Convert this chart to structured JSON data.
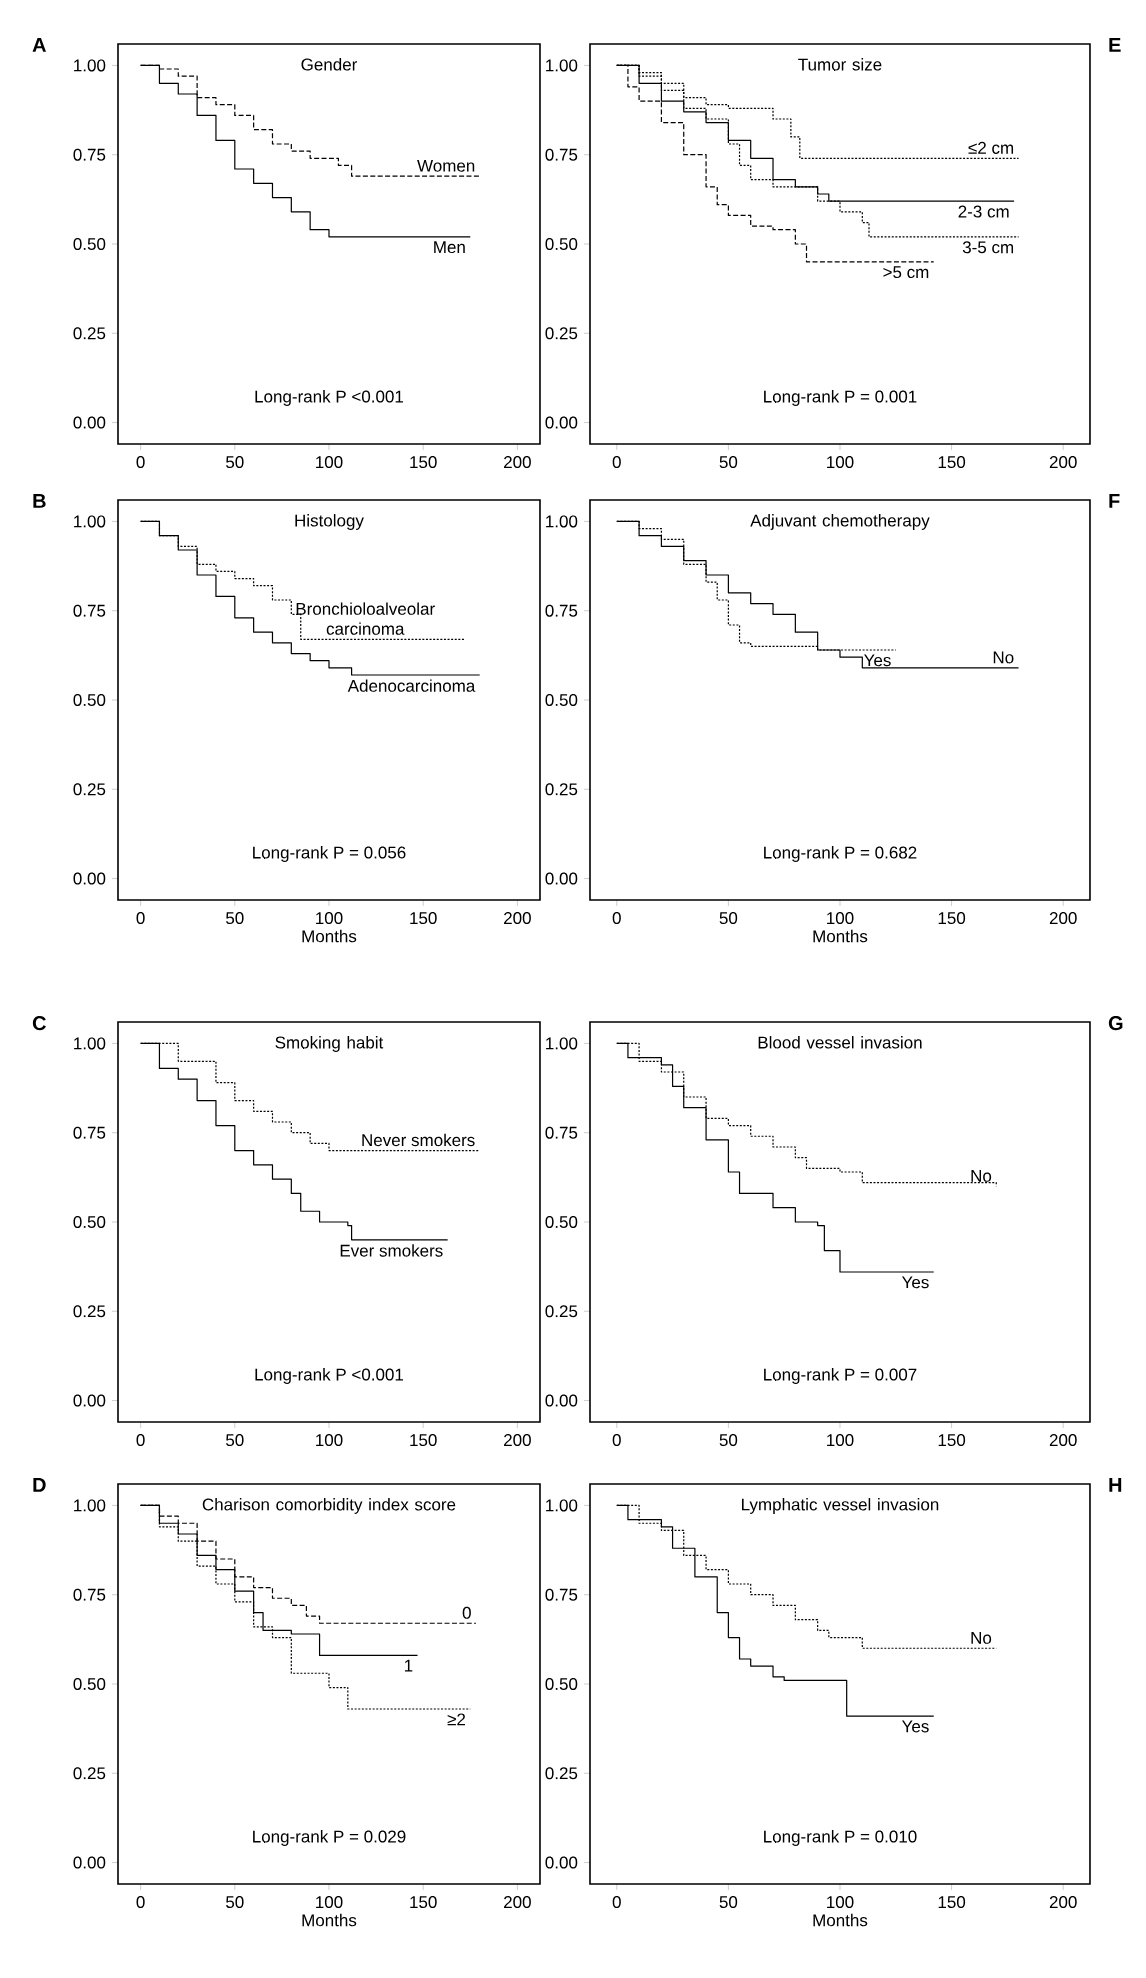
{
  "chart_data": [
    {
      "type": "step",
      "title": "Gender",
      "annotations": [
        "A",
        "Long-rank P <0.001"
      ],
      "xlim": [
        -12,
        212
      ],
      "ylim": [
        -0.06,
        1.06
      ],
      "xticks": [
        0,
        50,
        100,
        150,
        200
      ],
      "yticks": [
        {
          "value": 0,
          "label": "0.00"
        },
        {
          "value": 0.25,
          "label": "0.25"
        },
        {
          "value": 0.5,
          "label": "0.50"
        },
        {
          "value": 0.75,
          "label": "0.75"
        },
        {
          "value": 1,
          "label": "1.00"
        }
      ],
      "series": [
        {
          "name": "Women",
          "color": "#000000",
          "line_style": "dashed",
          "x": [
            0,
            10,
            20,
            30,
            40,
            50,
            60,
            70,
            80,
            90,
            100,
            105,
            112,
            180
          ],
          "values": [
            1,
            0.99,
            0.97,
            0.91,
            0.89,
            0.86,
            0.82,
            0.78,
            0.76,
            0.74,
            0.74,
            0.72,
            0.69,
            0.69
          ]
        },
        {
          "name": "Men",
          "color": "#000000",
          "line_style": "solid",
          "x": [
            0,
            10,
            20,
            30,
            40,
            50,
            60,
            70,
            80,
            90,
            100,
            175
          ],
          "values": [
            1,
            0.95,
            0.92,
            0.86,
            0.79,
            0.71,
            0.67,
            0.63,
            0.59,
            0.54,
            0.52,
            0.52
          ]
        }
      ]
    },
    {
      "type": "step",
      "title": "Tumor size",
      "annotations": [
        "E",
        "Long-rank P = 0.001"
      ],
      "xlim": [
        -12,
        212
      ],
      "ylim": [
        -0.06,
        1.06
      ],
      "xticks": [
        0,
        50,
        100,
        150,
        200
      ],
      "yticks": [
        {
          "value": 0,
          "label": "0.00"
        },
        {
          "value": 0.25,
          "label": "0.25"
        },
        {
          "value": 0.5,
          "label": "0.50"
        },
        {
          "value": 0.75,
          "label": "0.75"
        },
        {
          "value": 1,
          "label": "1.00"
        }
      ],
      "series": [
        {
          "name": "≤2 cm",
          "color": "#000000",
          "line_style": "dotted",
          "x": [
            0,
            10,
            20,
            30,
            40,
            50,
            60,
            70,
            78,
            82,
            180
          ],
          "values": [
            1,
            0.98,
            0.95,
            0.91,
            0.89,
            0.88,
            0.88,
            0.85,
            0.8,
            0.74,
            0.74
          ]
        },
        {
          "name": "2-3 cm",
          "color": "#000000",
          "line_style": "solid",
          "x": [
            0,
            10,
            20,
            30,
            40,
            50,
            60,
            70,
            80,
            90,
            95,
            178
          ],
          "values": [
            1,
            0.95,
            0.9,
            0.87,
            0.84,
            0.79,
            0.74,
            0.68,
            0.66,
            0.64,
            0.62,
            0.62
          ]
        },
        {
          "name": "3-5 cm",
          "color": "#000000",
          "line_style": "dotted",
          "x": [
            0,
            10,
            20,
            30,
            40,
            50,
            55,
            60,
            70,
            90,
            100,
            110,
            113,
            180
          ],
          "values": [
            1,
            0.97,
            0.93,
            0.88,
            0.85,
            0.78,
            0.72,
            0.68,
            0.66,
            0.62,
            0.59,
            0.56,
            0.52,
            0.52
          ]
        },
        {
          "name": ">5 cm",
          "color": "#000000",
          "line_style": "dashed",
          "x": [
            0,
            5,
            10,
            20,
            30,
            40,
            45,
            50,
            60,
            70,
            80,
            85,
            142
          ],
          "values": [
            1,
            0.94,
            0.9,
            0.84,
            0.75,
            0.66,
            0.61,
            0.58,
            0.55,
            0.54,
            0.5,
            0.45,
            0.45
          ]
        }
      ]
    },
    {
      "type": "step",
      "title": "Histology",
      "xlabel": "Months",
      "annotations": [
        "B",
        "Long-rank P = 0.056"
      ],
      "xlim": [
        -12,
        212
      ],
      "ylim": [
        -0.06,
        1.06
      ],
      "xticks": [
        0,
        50,
        100,
        150,
        200
      ],
      "yticks": [
        {
          "value": 0,
          "label": "0.00"
        },
        {
          "value": 0.25,
          "label": "0.25"
        },
        {
          "value": 0.5,
          "label": "0.50"
        },
        {
          "value": 0.75,
          "label": "0.75"
        },
        {
          "value": 1,
          "label": "1.00"
        }
      ],
      "series": [
        {
          "name": "Bronchioloalveolar carcinoma",
          "color": "#000000",
          "line_style": "dotted",
          "x": [
            0,
            10,
            20,
            30,
            40,
            50,
            60,
            70,
            80,
            85,
            172
          ],
          "values": [
            1,
            0.96,
            0.93,
            0.88,
            0.86,
            0.84,
            0.82,
            0.78,
            0.74,
            0.67,
            0.67
          ]
        },
        {
          "name": "Adenocarcinoma",
          "color": "#000000",
          "line_style": "solid",
          "x": [
            0,
            10,
            20,
            30,
            40,
            50,
            60,
            70,
            80,
            90,
            100,
            112,
            180
          ],
          "values": [
            1,
            0.96,
            0.92,
            0.85,
            0.79,
            0.73,
            0.69,
            0.66,
            0.63,
            0.61,
            0.59,
            0.57,
            0.57
          ]
        }
      ]
    },
    {
      "type": "step",
      "title": "Adjuvant chemotherapy",
      "xlabel": "Months",
      "annotations": [
        "F",
        "Long-rank P = 0.682"
      ],
      "xlim": [
        -12,
        212
      ],
      "ylim": [
        -0.06,
        1.06
      ],
      "xticks": [
        0,
        50,
        100,
        150,
        200
      ],
      "yticks": [
        {
          "value": 0,
          "label": "0.00"
        },
        {
          "value": 0.25,
          "label": "0.25"
        },
        {
          "value": 0.5,
          "label": "0.50"
        },
        {
          "value": 0.75,
          "label": "0.75"
        },
        {
          "value": 1,
          "label": "1.00"
        }
      ],
      "series": [
        {
          "name": "No",
          "color": "#000000",
          "line_style": "solid",
          "x": [
            0,
            10,
            20,
            30,
            40,
            50,
            60,
            70,
            80,
            90,
            100,
            110,
            180
          ],
          "values": [
            1,
            0.96,
            0.93,
            0.89,
            0.85,
            0.8,
            0.77,
            0.74,
            0.69,
            0.64,
            0.62,
            0.59,
            0.59
          ]
        },
        {
          "name": "Yes",
          "color": "#000000",
          "line_style": "dotted",
          "x": [
            0,
            10,
            20,
            30,
            40,
            45,
            50,
            55,
            60,
            90,
            125
          ],
          "values": [
            1,
            0.98,
            0.95,
            0.88,
            0.83,
            0.78,
            0.71,
            0.66,
            0.65,
            0.64,
            0.64
          ]
        }
      ]
    },
    {
      "type": "step",
      "title": "Smoking habit",
      "annotations": [
        "C",
        "Long-rank P <0.001"
      ],
      "xlim": [
        -12,
        212
      ],
      "ylim": [
        -0.06,
        1.06
      ],
      "xticks": [
        0,
        50,
        100,
        150,
        200
      ],
      "yticks": [
        {
          "value": 0,
          "label": "0.00"
        },
        {
          "value": 0.25,
          "label": "0.25"
        },
        {
          "value": 0.5,
          "label": "0.50"
        },
        {
          "value": 0.75,
          "label": "0.75"
        },
        {
          "value": 1,
          "label": "1.00"
        }
      ],
      "series": [
        {
          "name": "Never smokers",
          "color": "#000000",
          "line_style": "dotted",
          "x": [
            0,
            20,
            40,
            50,
            60,
            70,
            80,
            90,
            100,
            180
          ],
          "values": [
            1,
            0.95,
            0.89,
            0.84,
            0.81,
            0.78,
            0.75,
            0.72,
            0.7,
            0.7
          ]
        },
        {
          "name": "Ever smokers",
          "color": "#000000",
          "line_style": "solid",
          "x": [
            0,
            10,
            20,
            30,
            40,
            50,
            60,
            70,
            80,
            85,
            95,
            110,
            112,
            163
          ],
          "values": [
            1,
            0.93,
            0.9,
            0.84,
            0.77,
            0.7,
            0.66,
            0.62,
            0.58,
            0.53,
            0.5,
            0.49,
            0.45,
            0.45
          ]
        }
      ]
    },
    {
      "type": "step",
      "title": "Blood vessel invasion",
      "annotations": [
        "G",
        "Long-rank P = 0.007"
      ],
      "xlim": [
        -12,
        212
      ],
      "ylim": [
        -0.06,
        1.06
      ],
      "xticks": [
        0,
        50,
        100,
        150,
        200
      ],
      "yticks": [
        {
          "value": 0,
          "label": "0.00"
        },
        {
          "value": 0.25,
          "label": "0.25"
        },
        {
          "value": 0.5,
          "label": "0.50"
        },
        {
          "value": 0.75,
          "label": "0.75"
        },
        {
          "value": 1,
          "label": "1.00"
        }
      ],
      "series": [
        {
          "name": "No",
          "color": "#000000",
          "line_style": "dotted",
          "x": [
            0,
            10,
            20,
            30,
            40,
            50,
            60,
            70,
            80,
            85,
            100,
            110,
            170
          ],
          "values": [
            1,
            0.95,
            0.92,
            0.85,
            0.79,
            0.77,
            0.74,
            0.71,
            0.68,
            0.65,
            0.64,
            0.61,
            0.6
          ]
        },
        {
          "name": "Yes",
          "color": "#000000",
          "line_style": "solid",
          "x": [
            0,
            5,
            20,
            25,
            30,
            40,
            50,
            55,
            70,
            80,
            90,
            93,
            100,
            142
          ],
          "values": [
            1,
            0.96,
            0.94,
            0.88,
            0.82,
            0.73,
            0.64,
            0.58,
            0.54,
            0.5,
            0.49,
            0.42,
            0.36,
            0.36
          ]
        }
      ]
    },
    {
      "type": "step",
      "title": "Charison comorbidity index score",
      "xlabel": "Months",
      "annotations": [
        "D",
        "Long-rank P = 0.029"
      ],
      "xlim": [
        -12,
        212
      ],
      "ylim": [
        -0.06,
        1.06
      ],
      "xticks": [
        0,
        50,
        100,
        150,
        200
      ],
      "yticks": [
        {
          "value": 0,
          "label": "0.00"
        },
        {
          "value": 0.25,
          "label": "0.25"
        },
        {
          "value": 0.5,
          "label": "0.50"
        },
        {
          "value": 0.75,
          "label": "0.75"
        },
        {
          "value": 1,
          "label": "1.00"
        }
      ],
      "series": [
        {
          "name": "0",
          "color": "#000000",
          "line_style": "dashed",
          "x": [
            0,
            10,
            20,
            30,
            40,
            50,
            60,
            70,
            80,
            88,
            95,
            178
          ],
          "values": [
            1,
            0.97,
            0.95,
            0.9,
            0.85,
            0.8,
            0.77,
            0.74,
            0.72,
            0.69,
            0.67,
            0.67
          ]
        },
        {
          "name": "1",
          "color": "#000000",
          "line_style": "solid",
          "x": [
            0,
            10,
            20,
            30,
            40,
            50,
            60,
            65,
            80,
            95,
            147
          ],
          "values": [
            1,
            0.95,
            0.92,
            0.86,
            0.82,
            0.76,
            0.7,
            0.65,
            0.64,
            0.58,
            0.58
          ]
        },
        {
          "name": "≥2",
          "color": "#000000",
          "line_style": "dotted",
          "x": [
            0,
            10,
            20,
            30,
            40,
            50,
            60,
            70,
            80,
            100,
            110,
            175
          ],
          "values": [
            1,
            0.94,
            0.9,
            0.83,
            0.78,
            0.73,
            0.66,
            0.63,
            0.53,
            0.49,
            0.43,
            0.43
          ]
        }
      ]
    },
    {
      "type": "step",
      "title": "Lymphatic vessel invasion",
      "xlabel": "Months",
      "annotations": [
        "H",
        "Long-rank P = 0.010"
      ],
      "xlim": [
        -12,
        212
      ],
      "ylim": [
        -0.06,
        1.06
      ],
      "xticks": [
        0,
        50,
        100,
        150,
        200
      ],
      "yticks": [
        {
          "value": 0,
          "label": "0.00"
        },
        {
          "value": 0.25,
          "label": "0.25"
        },
        {
          "value": 0.5,
          "label": "0.50"
        },
        {
          "value": 0.75,
          "label": "0.75"
        },
        {
          "value": 1,
          "label": "1.00"
        }
      ],
      "series": [
        {
          "name": "No",
          "color": "#000000",
          "line_style": "dotted",
          "x": [
            0,
            10,
            20,
            30,
            40,
            50,
            60,
            70,
            80,
            90,
            95,
            110,
            170
          ],
          "values": [
            1,
            0.95,
            0.93,
            0.86,
            0.82,
            0.78,
            0.75,
            0.72,
            0.68,
            0.65,
            0.63,
            0.6,
            0.6
          ]
        },
        {
          "name": "Yes",
          "color": "#000000",
          "line_style": "solid",
          "x": [
            0,
            5,
            20,
            25,
            35,
            45,
            50,
            55,
            60,
            70,
            75,
            100,
            103,
            142
          ],
          "values": [
            1,
            0.96,
            0.94,
            0.88,
            0.8,
            0.7,
            0.63,
            0.57,
            0.55,
            0.52,
            0.51,
            0.51,
            0.41,
            0.41
          ]
        }
      ]
    }
  ]
}
